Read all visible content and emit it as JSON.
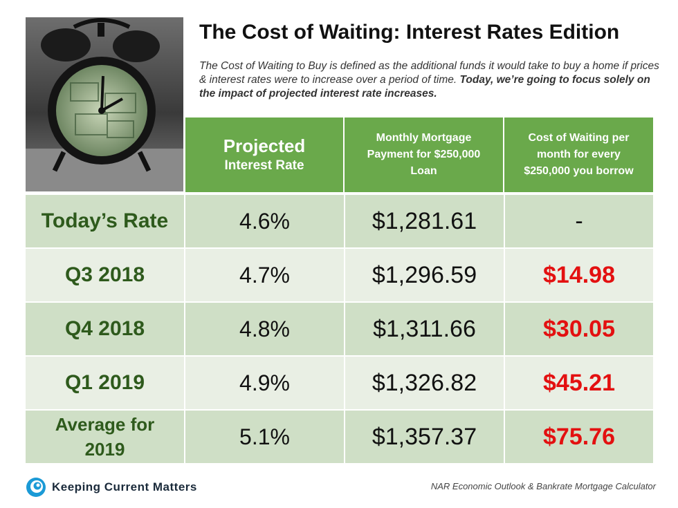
{
  "title": "The Cost of Waiting: Interest Rates Edition",
  "subtitle": {
    "regular": "The Cost of Waiting to Buy is defined as the additional funds it would take to buy a home if prices & interest rates were to increase over a period of time.",
    "bold": "Today, we’re going to focus solely on the impact of projected interest rate increases."
  },
  "table": {
    "headers": {
      "rate_line1": "Projected",
      "rate_line2": "Interest Rate",
      "payment": "Monthly Mortgage Payment for $250,000 Loan",
      "cost": "Cost of Waiting per month for every $250,000 you borrow"
    },
    "rows": [
      {
        "period": "Today’s Rate",
        "rate": "4.6%",
        "payment": "$1,281.61",
        "cost": "-"
      },
      {
        "period": "Q3 2018",
        "rate": "4.7%",
        "payment": "$1,296.59",
        "cost": "$14.98"
      },
      {
        "period": "Q4 2018",
        "rate": "4.8%",
        "payment": "$1,311.66",
        "cost": "$30.05"
      },
      {
        "period": "Q1 2019",
        "rate": "4.9%",
        "payment": "$1,326.82",
        "cost": "$45.21"
      },
      {
        "period": "Average for 2019",
        "rate": "5.1%",
        "payment": "$1,357.37",
        "cost": "$75.76"
      }
    ]
  },
  "footer": {
    "logo": "Keeping Current Matters",
    "source": "NAR Economic Outlook & Bankrate Mortgage Calculator"
  },
  "colors": {
    "header_green": "#6aa94b",
    "row_dark": "#cfdfc6",
    "row_light": "#e9efe4",
    "period_text": "#2e5a1c",
    "cost_red": "#e31010"
  }
}
